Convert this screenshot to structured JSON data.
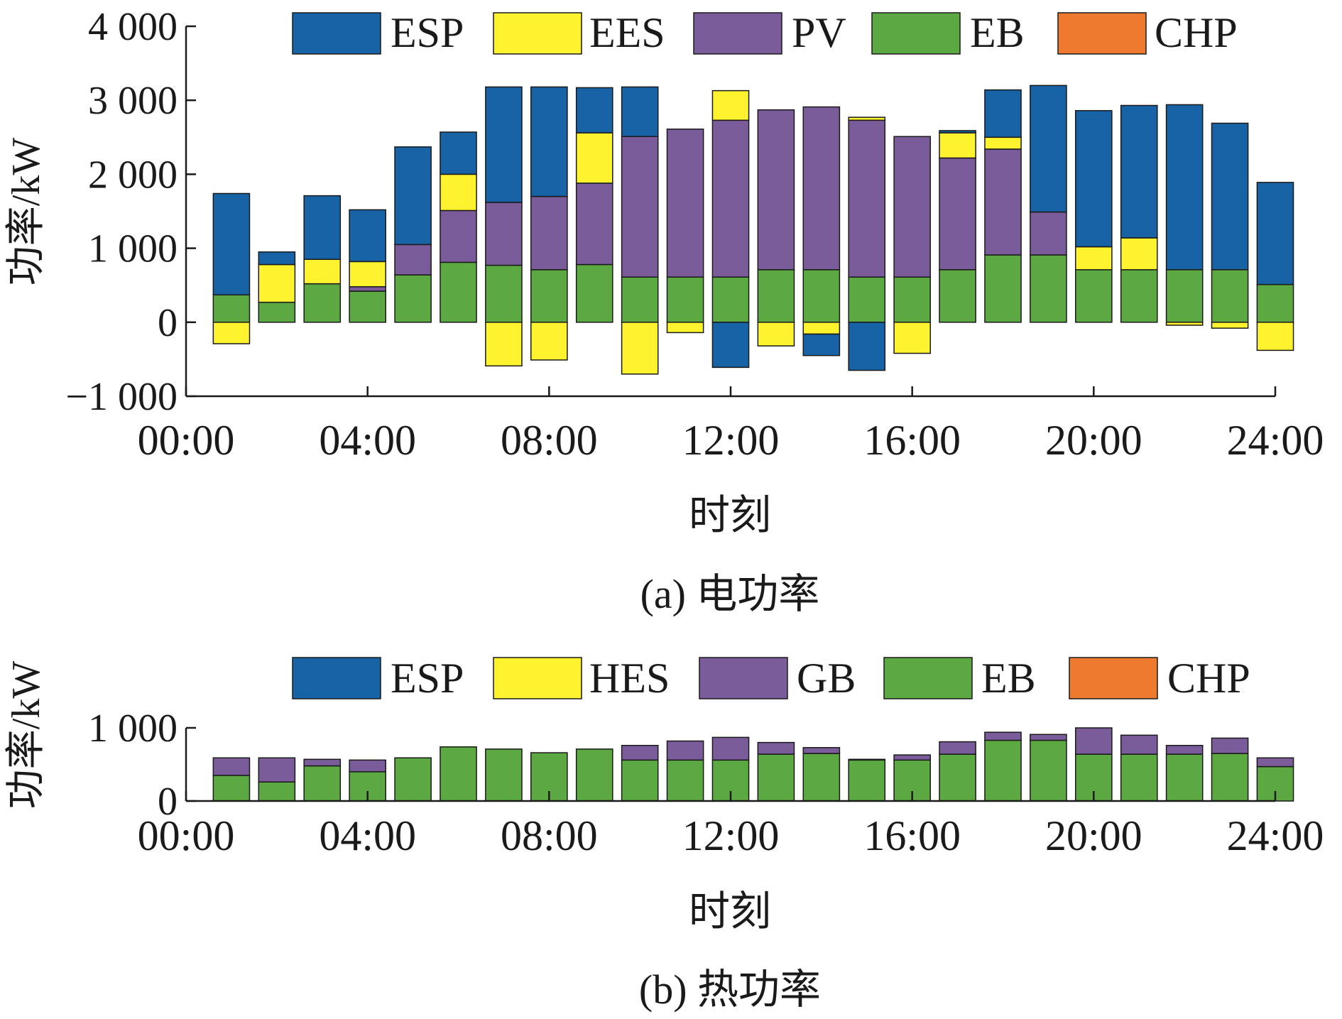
{
  "colors": {
    "ESP": "#1763A6",
    "EES": "#FFF22E",
    "HES": "#FFF22E",
    "PV": "#7B5C9A",
    "GB": "#7B5C9A",
    "EB": "#5CA943",
    "CHP": "#EE7A30",
    "axis": "#1a1a1a"
  },
  "chart_data": [
    {
      "type": "bar",
      "stacked": true,
      "caption": "(a) 电功率",
      "xlabel": "时刻",
      "ylabel": "功率/kW",
      "ylim": [
        -1000,
        4000
      ],
      "yticks": [
        -1000,
        0,
        1000,
        2000,
        3000,
        4000
      ],
      "ytick_labels": [
        "−1 000",
        "0",
        "1 000",
        "2 000",
        "3 000",
        "4 000"
      ],
      "xlim": [
        0,
        24
      ],
      "xticks": [
        "00:00",
        "04:00",
        "08:00",
        "12:00",
        "16:00",
        "20:00",
        "24:00"
      ],
      "legend": [
        "ESP",
        "EES",
        "PV",
        "EB",
        "CHP"
      ],
      "legend_position": "top",
      "categories": [
        1,
        2,
        3,
        4,
        5,
        6,
        7,
        8,
        9,
        10,
        11,
        12,
        13,
        14,
        15,
        16,
        17,
        18,
        19,
        20,
        21,
        22,
        23,
        24
      ],
      "series": [
        {
          "name": "EB",
          "values": [
            370,
            270,
            520,
            420,
            640,
            810,
            770,
            710,
            780,
            610,
            610,
            610,
            710,
            710,
            610,
            610,
            710,
            910,
            910,
            710,
            710,
            710,
            710,
            510
          ]
        },
        {
          "name": "CHP",
          "values": [
            0,
            0,
            0,
            0,
            0,
            0,
            0,
            0,
            0,
            0,
            0,
            0,
            0,
            0,
            0,
            0,
            0,
            0,
            0,
            0,
            0,
            0,
            0,
            0
          ]
        },
        {
          "name": "PV",
          "values": [
            0,
            0,
            0,
            60,
            410,
            700,
            850,
            990,
            1100,
            1900,
            2000,
            2120,
            2160,
            2200,
            2120,
            1900,
            1510,
            1430,
            580,
            0,
            0,
            0,
            0,
            0
          ]
        },
        {
          "name": "EES",
          "values": [
            -290,
            510,
            330,
            340,
            0,
            490,
            -590,
            -510,
            680,
            -700,
            -140,
            400,
            -320,
            -160,
            40,
            -420,
            340,
            160,
            0,
            310,
            430,
            -40,
            -80,
            -380
          ]
        },
        {
          "name": "ESP",
          "values": [
            1370,
            170,
            860,
            700,
            1320,
            570,
            1560,
            1480,
            610,
            670,
            0,
            -610,
            0,
            -290,
            -650,
            0,
            30,
            640,
            1710,
            1840,
            1790,
            2230,
            1980,
            1380
          ]
        }
      ]
    },
    {
      "type": "bar",
      "stacked": true,
      "caption": "(b) 热功率",
      "xlabel": "时刻",
      "ylabel": "功率/kW",
      "ylim": [
        0,
        1000
      ],
      "yticks": [
        0,
        1000
      ],
      "ytick_labels": [
        "0",
        "1 000"
      ],
      "xlim": [
        0,
        24
      ],
      "xticks": [
        "00:00",
        "04:00",
        "08:00",
        "12:00",
        "16:00",
        "20:00",
        "24:00"
      ],
      "legend": [
        "ESP",
        "HES",
        "GB",
        "EB",
        "CHP"
      ],
      "legend_position": "top",
      "categories": [
        1,
        2,
        3,
        4,
        5,
        6,
        7,
        8,
        9,
        10,
        11,
        12,
        13,
        14,
        15,
        16,
        17,
        18,
        19,
        20,
        21,
        22,
        23,
        24
      ],
      "series": [
        {
          "name": "EB",
          "values": [
            350,
            260,
            480,
            400,
            590,
            740,
            710,
            660,
            710,
            560,
            560,
            560,
            640,
            650,
            560,
            560,
            640,
            830,
            830,
            640,
            640,
            640,
            650,
            470
          ]
        },
        {
          "name": "CHP",
          "values": [
            0,
            0,
            0,
            0,
            0,
            0,
            0,
            0,
            0,
            0,
            0,
            0,
            0,
            0,
            0,
            0,
            0,
            0,
            0,
            0,
            0,
            0,
            0,
            0
          ]
        },
        {
          "name": "GB",
          "values": [
            240,
            330,
            90,
            160,
            0,
            0,
            0,
            0,
            0,
            200,
            260,
            310,
            160,
            80,
            10,
            70,
            170,
            110,
            80,
            360,
            260,
            120,
            210,
            120
          ]
        },
        {
          "name": "HES",
          "values": [
            0,
            0,
            0,
            0,
            0,
            0,
            0,
            0,
            0,
            0,
            0,
            0,
            0,
            0,
            0,
            0,
            0,
            0,
            0,
            0,
            0,
            0,
            0,
            0
          ]
        },
        {
          "name": "ESP",
          "values": [
            0,
            0,
            0,
            0,
            0,
            0,
            0,
            0,
            0,
            0,
            0,
            0,
            0,
            0,
            0,
            0,
            0,
            0,
            0,
            0,
            0,
            0,
            0,
            0
          ]
        }
      ]
    }
  ]
}
